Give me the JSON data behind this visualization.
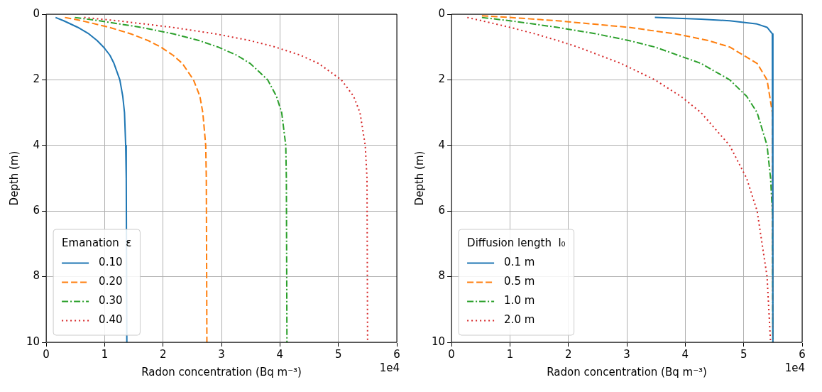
{
  "chart_data": [
    {
      "type": "line",
      "xlabel": "Radon concentration (Bq m⁻³)",
      "ylabel": "Depth (m)",
      "legend_title": "Emanation  ε",
      "legend": "bottom left",
      "grid": true,
      "xlim": [
        0,
        6
      ],
      "xticks": [
        0,
        1,
        2,
        3,
        4,
        5,
        6
      ],
      "ylim": [
        10,
        0
      ],
      "yticks": [
        0,
        2,
        4,
        6,
        8,
        10
      ],
      "annotations": [
        "1e4"
      ],
      "series": [
        {
          "name": "0.10",
          "color": "#1f77b4",
          "line_style": "solid",
          "x": [
            0.16,
            0.3,
            0.54,
            0.73,
            0.87,
            0.98,
            1.09,
            1.16,
            1.26,
            1.31,
            1.34,
            1.36,
            1.37,
            1.38
          ],
          "values": [
            0.1,
            0.2,
            0.4,
            0.6,
            0.8,
            1,
            1.25,
            1.5,
            2,
            2.5,
            3,
            4,
            5,
            10
          ]
        },
        {
          "name": "0.20",
          "color": "#ff7f0e",
          "line_style": "dashed",
          "x": [
            0.32,
            0.61,
            1.08,
            1.45,
            1.74,
            1.96,
            2.17,
            2.33,
            2.52,
            2.63,
            2.68,
            2.73,
            2.74,
            2.75
          ],
          "values": [
            0.1,
            0.2,
            0.4,
            0.6,
            0.8,
            1,
            1.25,
            1.5,
            2,
            2.5,
            3,
            4,
            5,
            10
          ]
        },
        {
          "name": "0.30",
          "color": "#2ca02c",
          "line_style": "dashdot",
          "x": [
            0.49,
            0.91,
            1.62,
            2.18,
            2.61,
            2.94,
            3.26,
            3.49,
            3.79,
            3.94,
            4.03,
            4.1,
            4.11,
            4.12
          ],
          "values": [
            0.1,
            0.2,
            0.4,
            0.6,
            0.8,
            1,
            1.25,
            1.5,
            2,
            2.5,
            3,
            4,
            5,
            10
          ]
        },
        {
          "name": "0.40",
          "color": "#d62728",
          "line_style": "dotted",
          "x": [
            0.65,
            1.22,
            2.16,
            2.9,
            3.48,
            3.92,
            4.35,
            4.66,
            5.05,
            5.26,
            5.37,
            5.46,
            5.49,
            5.5
          ],
          "values": [
            0.1,
            0.2,
            0.4,
            0.6,
            0.8,
            1,
            1.25,
            1.5,
            2,
            2.5,
            3,
            4,
            5,
            10
          ]
        }
      ]
    },
    {
      "type": "line",
      "xlabel": "Radon concentration (Bq m⁻³)",
      "ylabel": "Depth (m)",
      "legend_title": "Diffusion length  l₀",
      "legend": "bottom left",
      "grid": true,
      "xlim": [
        0,
        6
      ],
      "xticks": [
        0,
        1,
        2,
        3,
        4,
        5,
        6
      ],
      "ylim": [
        10,
        0
      ],
      "yticks": [
        0,
        2,
        4,
        6,
        8,
        10
      ],
      "annotations": [
        "1e4"
      ],
      "series": [
        {
          "name": "0.1 m",
          "color": "#1f77b4",
          "line_style": "solid",
          "x": [
            3.48,
            4.27,
            4.76,
            5.23,
            5.4,
            5.49,
            5.5
          ],
          "values": [
            0.1,
            0.15,
            0.2,
            0.3,
            0.4,
            0.6,
            10
          ]
        },
        {
          "name": "0.5 m",
          "color": "#ff7f0e",
          "line_style": "dashed",
          "x": [
            0.52,
            1.0,
            1.81,
            3.03,
            3.84,
            4.39,
            4.76,
            5.23,
            5.4,
            5.49,
            5.5
          ],
          "values": [
            0.05,
            0.1,
            0.2,
            0.4,
            0.6,
            0.8,
            1,
            1.5,
            2,
            3,
            10
          ]
        },
        {
          "name": "1.0 m",
          "color": "#2ca02c",
          "line_style": "dashdot",
          "x": [
            0.52,
            1.0,
            1.81,
            2.48,
            3.03,
            3.48,
            4.27,
            4.76,
            5.05,
            5.23,
            5.4,
            5.46,
            5.49,
            5.5
          ],
          "values": [
            0.1,
            0.2,
            0.4,
            0.6,
            0.8,
            1,
            1.5,
            2,
            2.5,
            3,
            4,
            5,
            6,
            10
          ]
        },
        {
          "name": "2.0 m",
          "color": "#d62728",
          "line_style": "dotted",
          "x": [
            0.27,
            0.52,
            1.0,
            1.43,
            1.81,
            2.16,
            2.9,
            3.48,
            3.92,
            4.27,
            4.76,
            5.05,
            5.23,
            5.4,
            5.46
          ],
          "values": [
            0.1,
            0.2,
            0.4,
            0.6,
            0.8,
            1,
            1.5,
            2,
            2.5,
            3,
            4,
            5,
            6,
            8,
            10
          ]
        }
      ]
    }
  ]
}
